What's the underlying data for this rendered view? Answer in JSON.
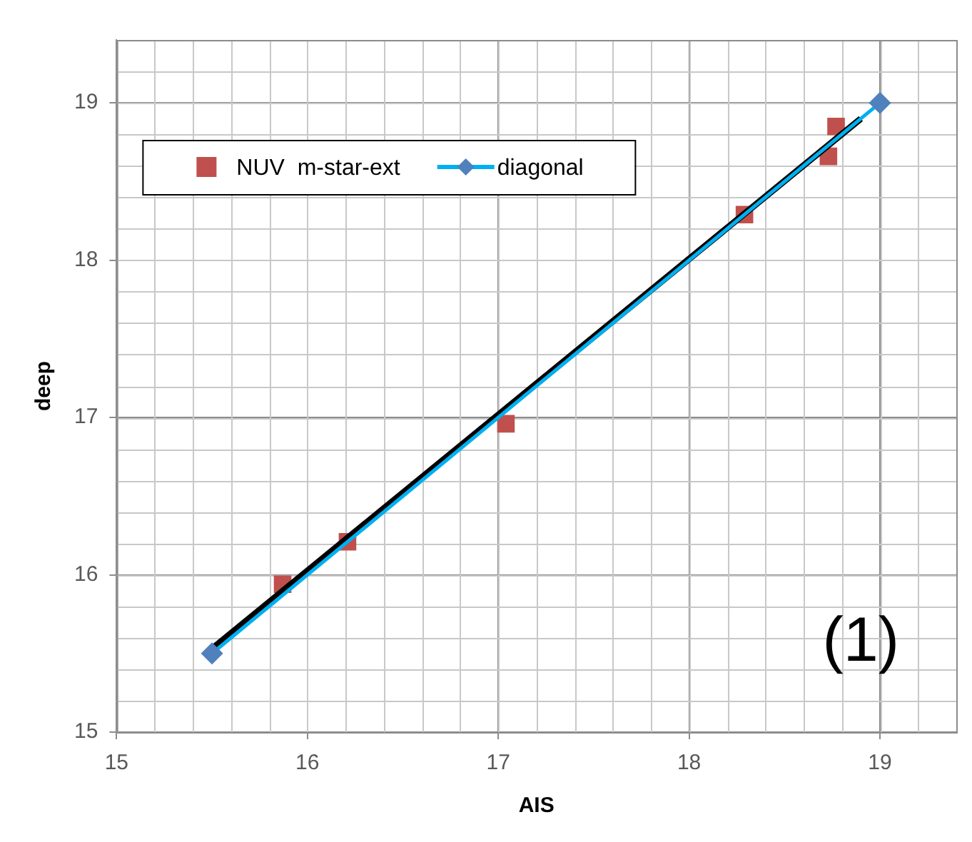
{
  "chart_data": {
    "type": "scatter",
    "xlabel": "AIS",
    "ylabel": "deep",
    "xlim": [
      15,
      19.4
    ],
    "xticks": [
      15,
      16,
      17,
      18,
      19
    ],
    "ylim": [
      15,
      19.4
    ],
    "yticks": [
      15,
      16,
      17,
      18,
      19
    ],
    "grid": true,
    "legend": "top left",
    "annotations": [
      "(1)"
    ],
    "series": [
      {
        "name": "NUV  m-star-ext",
        "type": "scatter",
        "marker": "square",
        "color": "#c0504d",
        "x": [
          15.87,
          16.21,
          17.04,
          18.29,
          18.73,
          18.77
        ],
        "values": [
          15.94,
          16.21,
          16.96,
          18.29,
          18.66,
          18.85
        ]
      },
      {
        "type": "line",
        "marker": "none",
        "color": "#000000",
        "x": [
          15.5,
          18.9
        ],
        "values": [
          15.53,
          18.9
        ]
      },
      {
        "name": "diagonal",
        "type": "line",
        "marker": "diamond",
        "color": "#00b0f0",
        "x": [
          15.5,
          19
        ],
        "values": [
          15.5,
          19
        ]
      }
    ]
  }
}
